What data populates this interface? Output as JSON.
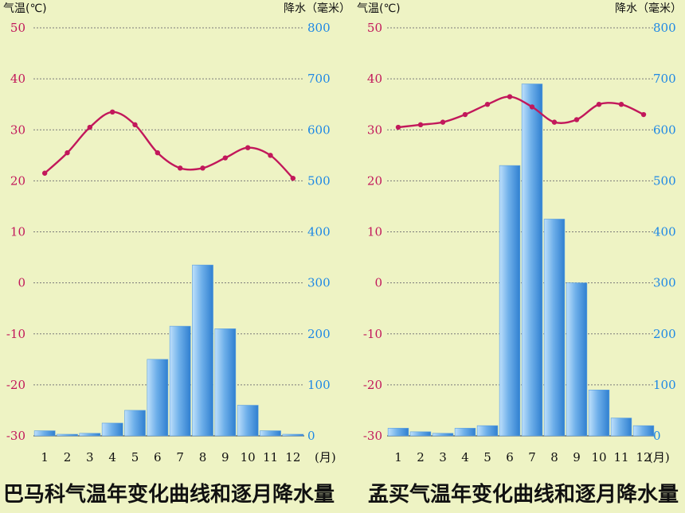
{
  "colors": {
    "background": "#eef3c4",
    "temperature_line": "#c2185b",
    "precip_bar": "#4f97de",
    "precip_bar_light": "#bfe0fb",
    "left_axis_text": "#c2185b",
    "right_axis_text": "#1e88e5",
    "grid": "#7a7a7a"
  },
  "chart_data": [
    {
      "type": "bar",
      "title": "巴马科气温年变化曲线和逐月降水量",
      "ylabel_left": "气温(℃)",
      "ylabel_right": "降水（毫米）",
      "xlabel_unit": "(月)",
      "categories": [
        "1",
        "2",
        "3",
        "4",
        "5",
        "6",
        "7",
        "8",
        "9",
        "10",
        "11",
        "12"
      ],
      "ylim_left": [
        -30,
        50
      ],
      "ylim_right": [
        0,
        800
      ],
      "yticks_left": [
        "50",
        "40",
        "30",
        "20",
        "10",
        "0",
        "-10",
        "-20",
        "-30"
      ],
      "yticks_right": [
        "800",
        "700",
        "600",
        "500",
        "400",
        "300",
        "200",
        "100",
        "0"
      ],
      "grid": true,
      "series": [
        {
          "kind": "line",
          "axis": "left",
          "values": [
            21.5,
            25.5,
            30.5,
            33.5,
            31,
            25.5,
            22.5,
            22.5,
            24.5,
            26.5,
            25,
            20.5
          ]
        },
        {
          "kind": "bar",
          "axis": "right",
          "values": [
            10,
            0,
            5,
            25,
            50,
            150,
            215,
            335,
            210,
            60,
            10,
            0
          ]
        }
      ]
    },
    {
      "type": "bar",
      "title": "孟买气温年变化曲线和逐月降水量",
      "ylabel_left": "气温(℃)",
      "ylabel_right": "降水（毫米）",
      "xlabel_unit": "(月)",
      "categories": [
        "1",
        "2",
        "3",
        "4",
        "5",
        "6",
        "7",
        "8",
        "9",
        "10",
        "11",
        "12"
      ],
      "ylim_left": [
        -30,
        50
      ],
      "ylim_right": [
        0,
        800
      ],
      "yticks_left": [
        "50",
        "40",
        "30",
        "20",
        "10",
        "0",
        "-10",
        "-20",
        "-30"
      ],
      "yticks_right": [
        "800",
        "700",
        "600",
        "500",
        "400",
        "300",
        "200",
        "100",
        "0"
      ],
      "grid": true,
      "series": [
        {
          "kind": "line",
          "axis": "left",
          "values": [
            30.5,
            31,
            31.5,
            33,
            35,
            36.5,
            34.5,
            31.5,
            32,
            35,
            35,
            33
          ]
        },
        {
          "kind": "bar",
          "axis": "right",
          "values": [
            15,
            8,
            5,
            15,
            20,
            530,
            690,
            425,
            300,
            90,
            35,
            20
          ]
        }
      ]
    }
  ]
}
